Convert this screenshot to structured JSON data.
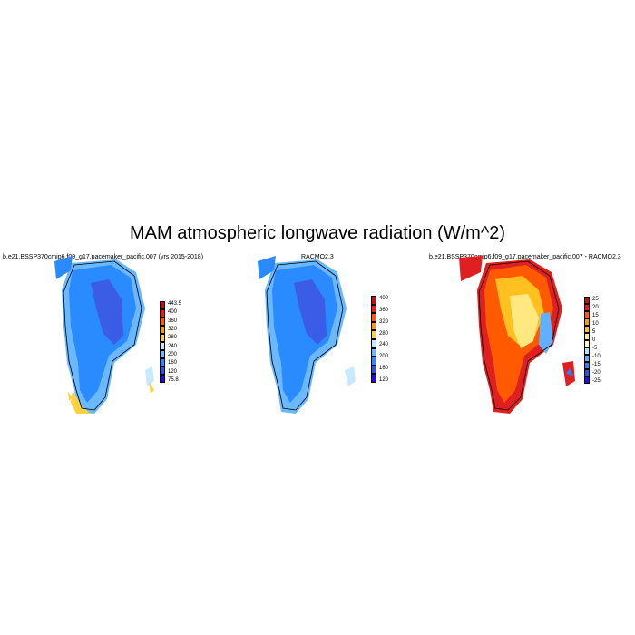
{
  "title": "MAM atmospheric longwave radiation (W/m^2)",
  "panels": [
    {
      "id": "model",
      "title": "b.e21.BSSP370cmip6.f09_g17.pacemaker_pacific.007 (yrs 2015-2018)",
      "colorbar": {
        "labels": [
          "443.5",
          "400",
          "360",
          "320",
          "280",
          "240",
          "200",
          "160",
          "120",
          "75.8"
        ],
        "colors": [
          "#c01010",
          "#e82010",
          "#ff5a00",
          "#ff9a00",
          "#ffd040",
          "#c8eaff",
          "#6ab8ff",
          "#2a8aff",
          "#3050e0",
          "#2010e0"
        ]
      }
    },
    {
      "id": "obs",
      "title": "RACMO2.3",
      "colorbar": {
        "labels": [
          "400",
          "360",
          "320",
          "280",
          "240",
          "200",
          "160",
          "120"
        ],
        "colors": [
          "#c01010",
          "#e82010",
          "#ff5a00",
          "#ff9a00",
          "#ffd040",
          "#c8eaff",
          "#6ab8ff",
          "#2a8aff",
          "#3050e0",
          "#2010e0"
        ]
      }
    },
    {
      "id": "diff",
      "title": "b.e21.BSSP370cmip6.f09_g17.pacemaker_pacific.007 - RACMO2.3",
      "colorbar": {
        "labels": [
          "25",
          "20",
          "15",
          "10",
          "5",
          "0",
          "-5",
          "-10",
          "-15",
          "-20",
          "-25"
        ],
        "colors": [
          "#c01010",
          "#e02020",
          "#ff5a00",
          "#ff9a00",
          "#ffc020",
          "#ffe880",
          "#fff8c0",
          "#b8e0ff",
          "#60b0ff",
          "#2a80ff",
          "#3050e0",
          "#2010e0"
        ]
      }
    }
  ]
}
